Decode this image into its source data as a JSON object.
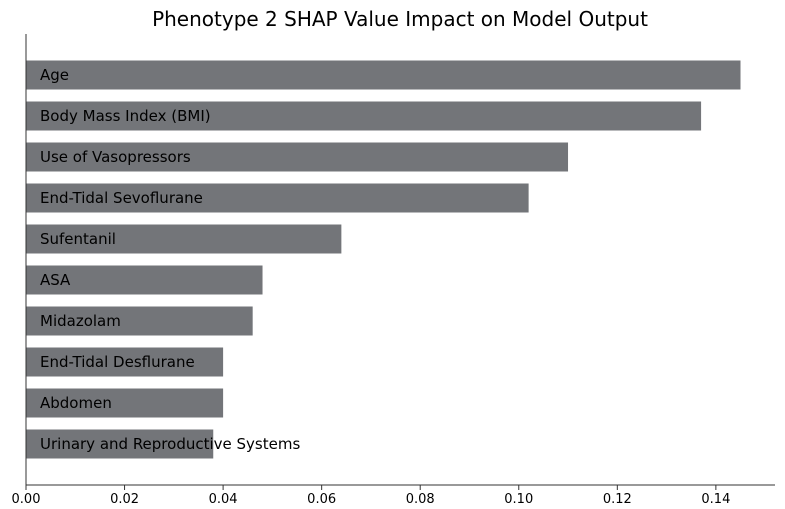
{
  "chart_data": {
    "type": "bar",
    "orientation": "horizontal",
    "title": "Phenotype 2 SHAP Value Impact on Model Output",
    "xlabel": "",
    "ylabel": "",
    "categories": [
      "Age",
      "Body Mass Index (BMI)",
      "Use of Vasopressors",
      "End-Tidal Sevoflurane",
      "Sufentanil",
      "ASA",
      "Midazolam",
      "End-Tidal Desflurane",
      "Abdomen",
      "Urinary and Reproductive Systems"
    ],
    "values": [
      0.145,
      0.137,
      0.11,
      0.102,
      0.064,
      0.048,
      0.046,
      0.04,
      0.04,
      0.038
    ],
    "xlim": [
      0,
      0.152
    ],
    "xticks": [
      "0.00",
      "0.02",
      "0.04",
      "0.06",
      "0.08",
      "0.10",
      "0.12",
      "0.14"
    ],
    "xtick_values": [
      0,
      0.02,
      0.04,
      0.06,
      0.08,
      0.1,
      0.12,
      0.14
    ],
    "bar_color": "#737579",
    "grid": false
  }
}
